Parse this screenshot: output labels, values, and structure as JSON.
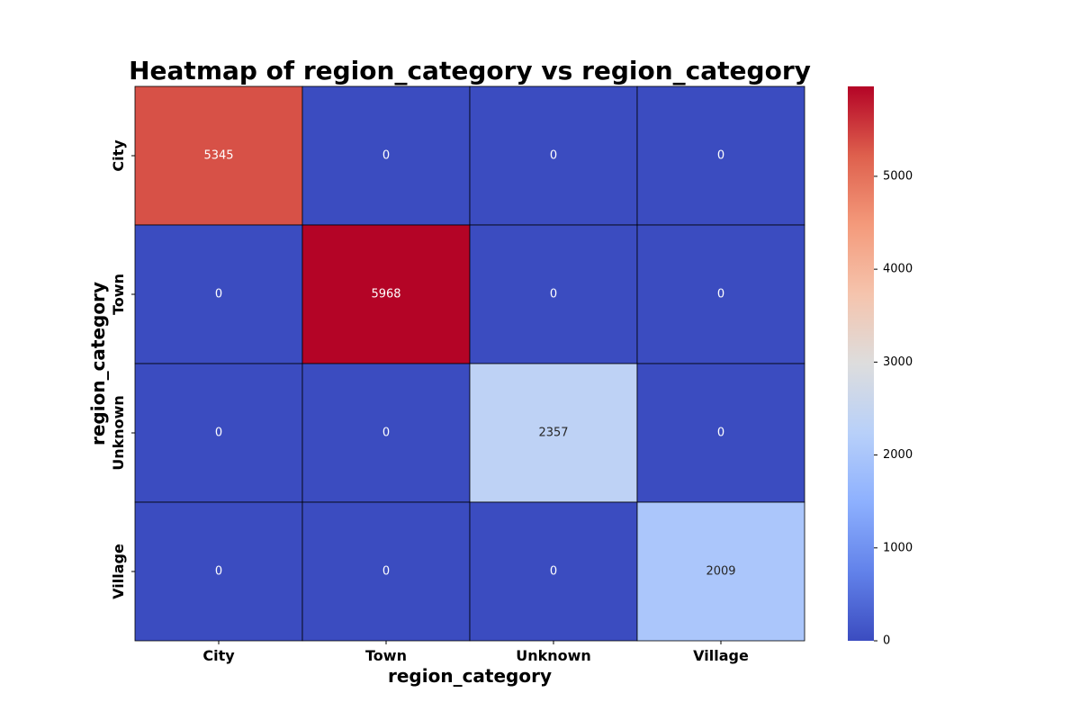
{
  "chart_data": {
    "type": "heatmap",
    "title": "Heatmap of region_category vs region_category",
    "xlabel": "region_category",
    "ylabel": "region_category",
    "x_categories": [
      "City",
      "Town",
      "Unknown",
      "Village"
    ],
    "y_categories": [
      "City",
      "Town",
      "Unknown",
      "Village"
    ],
    "values": [
      [
        5345,
        0,
        0,
        0
      ],
      [
        0,
        5968,
        0,
        0
      ],
      [
        0,
        0,
        2357,
        0
      ],
      [
        0,
        0,
        0,
        2009
      ]
    ],
    "colormap": "coolwarm",
    "vmin": 0,
    "vmax": 5968,
    "colorbar_ticks": [
      0,
      1000,
      2000,
      3000,
      4000,
      5000
    ],
    "colorbar_tick_labels": [
      "0",
      "1000",
      "2000",
      "3000",
      "4000",
      "5000"
    ],
    "cell_border_color": "#000000"
  }
}
